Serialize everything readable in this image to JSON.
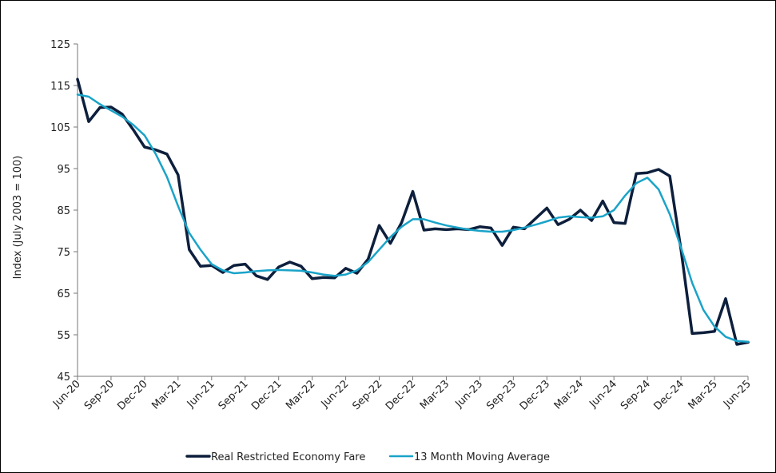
{
  "chart_data": {
    "type": "line",
    "title": "",
    "xlabel": "",
    "ylabel": "Index (July 2003 = 100)",
    "ylim": [
      45,
      125
    ],
    "yticks": [
      45,
      55,
      65,
      75,
      85,
      95,
      105,
      115,
      125
    ],
    "grid": false,
    "legend_position": "bottom-center",
    "x_tick_labels": [
      "Jun-20",
      "Sep-20",
      "Dec-20",
      "Mar-21",
      "Jun-21",
      "Sep-21",
      "Dec-21",
      "Mar-22",
      "Jun-22",
      "Sep-22",
      "Dec-22",
      "Mar-23",
      "Jun-23",
      "Sep-23",
      "Dec-23",
      "Mar-24",
      "Jun-24",
      "Sep-24",
      "Dec-24",
      "Mar-25",
      "Jun-25"
    ],
    "x": [
      "Jun-20",
      "Jul-20",
      "Aug-20",
      "Sep-20",
      "Oct-20",
      "Nov-20",
      "Dec-20",
      "Jan-21",
      "Feb-21",
      "Mar-21",
      "Apr-21",
      "May-21",
      "Jun-21",
      "Jul-21",
      "Aug-21",
      "Sep-21",
      "Oct-21",
      "Nov-21",
      "Dec-21",
      "Jan-22",
      "Feb-22",
      "Mar-22",
      "Apr-22",
      "May-22",
      "Jun-22",
      "Jul-22",
      "Aug-22",
      "Sep-22",
      "Oct-22",
      "Nov-22",
      "Dec-22",
      "Jan-23",
      "Feb-23",
      "Mar-23",
      "Apr-23",
      "May-23",
      "Jun-23",
      "Jul-23",
      "Aug-23",
      "Sep-23",
      "Oct-23",
      "Nov-23",
      "Dec-23",
      "Jan-24",
      "Feb-24",
      "Mar-24",
      "Apr-24",
      "May-24",
      "Jun-24",
      "Jul-24",
      "Aug-24",
      "Sep-24",
      "Oct-24",
      "Nov-24",
      "Dec-24",
      "Jan-25",
      "Feb-25",
      "Mar-25",
      "Apr-25",
      "May-25",
      "Jun-25"
    ],
    "series": [
      {
        "name": "Real Restricted Economy Fare",
        "color": "#0d1f3c",
        "values": [
          116.5,
          106.3,
          109.7,
          109.8,
          108.1,
          104.3,
          100.2,
          99.5,
          98.5,
          93.5,
          75.5,
          71.5,
          71.7,
          70.0,
          71.7,
          72.0,
          69.2,
          68.3,
          71.3,
          72.5,
          71.5,
          68.5,
          68.8,
          68.7,
          71.0,
          69.8,
          73.2,
          81.3,
          77.0,
          82.0,
          89.5,
          80.2,
          80.5,
          80.3,
          80.5,
          80.3,
          81.0,
          80.7,
          76.5,
          80.9,
          80.5,
          83.0,
          85.5,
          81.5,
          82.8,
          85.0,
          82.5,
          87.2,
          82.0,
          81.8,
          93.8,
          94.0,
          94.8,
          93.2,
          75.5,
          55.3,
          55.5,
          55.8,
          63.7,
          52.7,
          53.2
        ]
      },
      {
        "name": "13 Month Moving Average",
        "color": "#1aa3c8",
        "values": [
          112.8,
          112.3,
          110.5,
          109.0,
          107.5,
          105.5,
          103.0,
          98.5,
          93.0,
          86.0,
          79.5,
          75.5,
          72.0,
          70.5,
          69.8,
          70.0,
          70.3,
          70.5,
          70.6,
          70.5,
          70.4,
          70.0,
          69.5,
          69.2,
          69.5,
          70.5,
          72.5,
          75.5,
          78.5,
          81.0,
          82.8,
          82.8,
          82.0,
          81.3,
          80.8,
          80.3,
          80.0,
          79.8,
          79.8,
          80.2,
          80.8,
          81.5,
          82.3,
          83.2,
          83.5,
          83.3,
          83.2,
          83.5,
          85.0,
          88.5,
          91.5,
          92.8,
          90.0,
          84.0,
          76.0,
          67.5,
          61.0,
          57.0,
          54.5,
          53.5,
          53.3
        ]
      }
    ]
  }
}
